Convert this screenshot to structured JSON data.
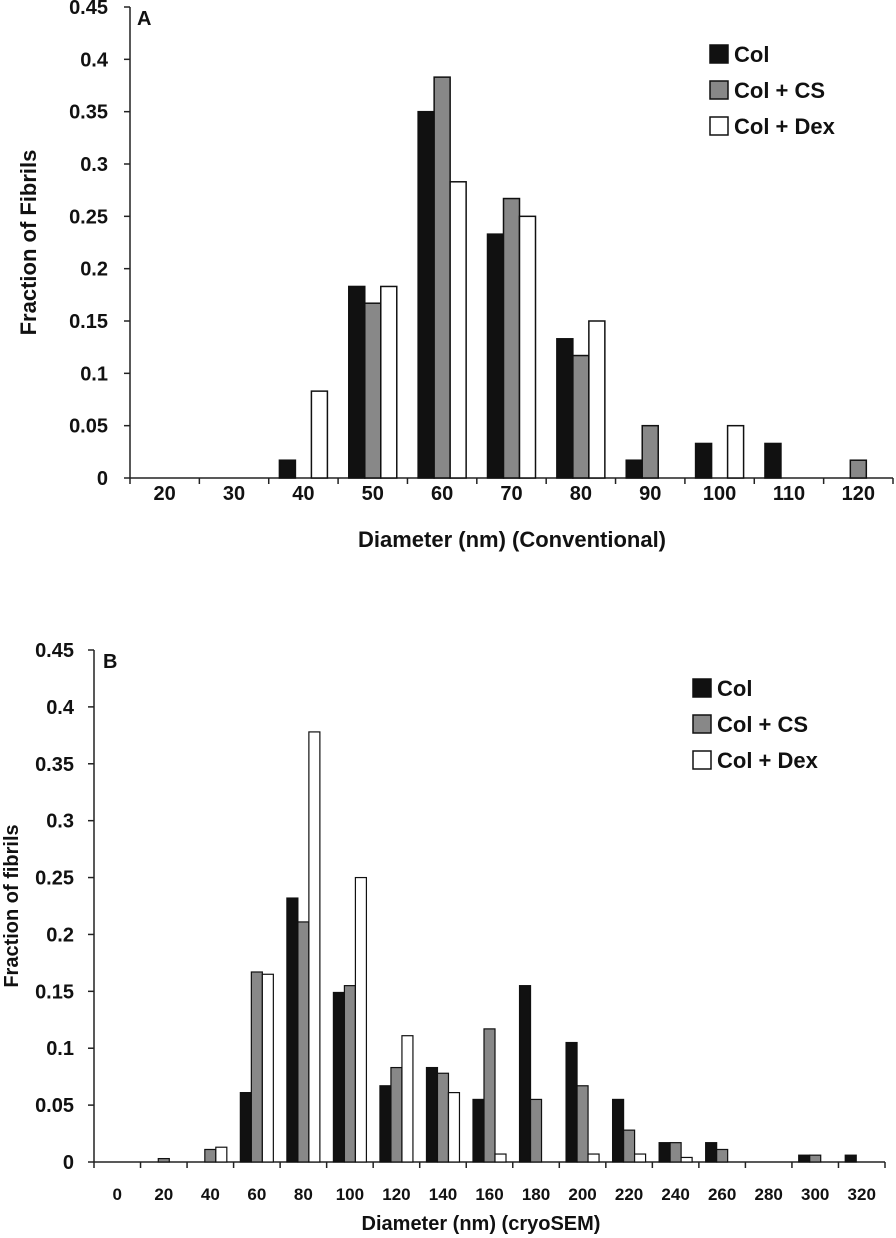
{
  "chart_data": [
    {
      "type": "bar",
      "panel_label": "A",
      "xlabel": "Diameter (nm) (Conventional)",
      "ylabel": "Fraction of Fibrils",
      "ylim": [
        0,
        0.45
      ],
      "yticks": [
        "0",
        "0.05",
        "0.1",
        "0.15",
        "0.2",
        "0.25",
        "0.3",
        "0.35",
        "0.4",
        "0.45"
      ],
      "categories": [
        "20",
        "30",
        "40",
        "50",
        "60",
        "70",
        "80",
        "90",
        "100",
        "110",
        "120"
      ],
      "legend_position": "top-right",
      "series": [
        {
          "name": "Col",
          "color": "#111111",
          "values": [
            0,
            0,
            0.017,
            0.183,
            0.35,
            0.233,
            0.133,
            0.017,
            0.033,
            0.033,
            0
          ]
        },
        {
          "name": "Col + CS",
          "color": "#888888",
          "values": [
            0,
            0,
            0,
            0.167,
            0.383,
            0.267,
            0.117,
            0.05,
            0,
            0,
            0.017
          ]
        },
        {
          "name": "Col + Dex",
          "color": "#ffffff",
          "values": [
            0,
            0,
            0.083,
            0.183,
            0.283,
            0.25,
            0.15,
            0,
            0.05,
            0,
            0
          ]
        }
      ]
    },
    {
      "type": "bar",
      "panel_label": "B",
      "xlabel": "Diameter (nm) (cryoSEM)",
      "ylabel": "Fraction of fibrils",
      "ylim": [
        0,
        0.45
      ],
      "yticks": [
        "0",
        "0.05",
        "0.1",
        "0.15",
        "0.2",
        "0.25",
        "0.3",
        "0.35",
        "0.4",
        "0.45"
      ],
      "categories": [
        "0",
        "20",
        "40",
        "60",
        "80",
        "100",
        "120",
        "140",
        "160",
        "180",
        "200",
        "220",
        "240",
        "260",
        "280",
        "300",
        "320"
      ],
      "legend_position": "top-right",
      "series": [
        {
          "name": "Col",
          "color": "#111111",
          "values": [
            0,
            0,
            0,
            0.061,
            0.232,
            0.149,
            0.067,
            0.083,
            0.055,
            0.155,
            0.105,
            0.055,
            0.017,
            0.017,
            0,
            0.006,
            0.006
          ]
        },
        {
          "name": "Col + CS",
          "color": "#888888",
          "values": [
            0,
            0.003,
            0.011,
            0.167,
            0.211,
            0.155,
            0.083,
            0.078,
            0.117,
            0.055,
            0.067,
            0.028,
            0.017,
            0.011,
            0,
            0.006,
            0
          ]
        },
        {
          "name": "Col + Dex",
          "color": "#ffffff",
          "values": [
            0,
            0,
            0.013,
            0.165,
            0.378,
            0.25,
            0.111,
            0.061,
            0.007,
            0,
            0.007,
            0.007,
            0.004,
            0,
            0,
            0,
            0
          ]
        }
      ]
    }
  ]
}
